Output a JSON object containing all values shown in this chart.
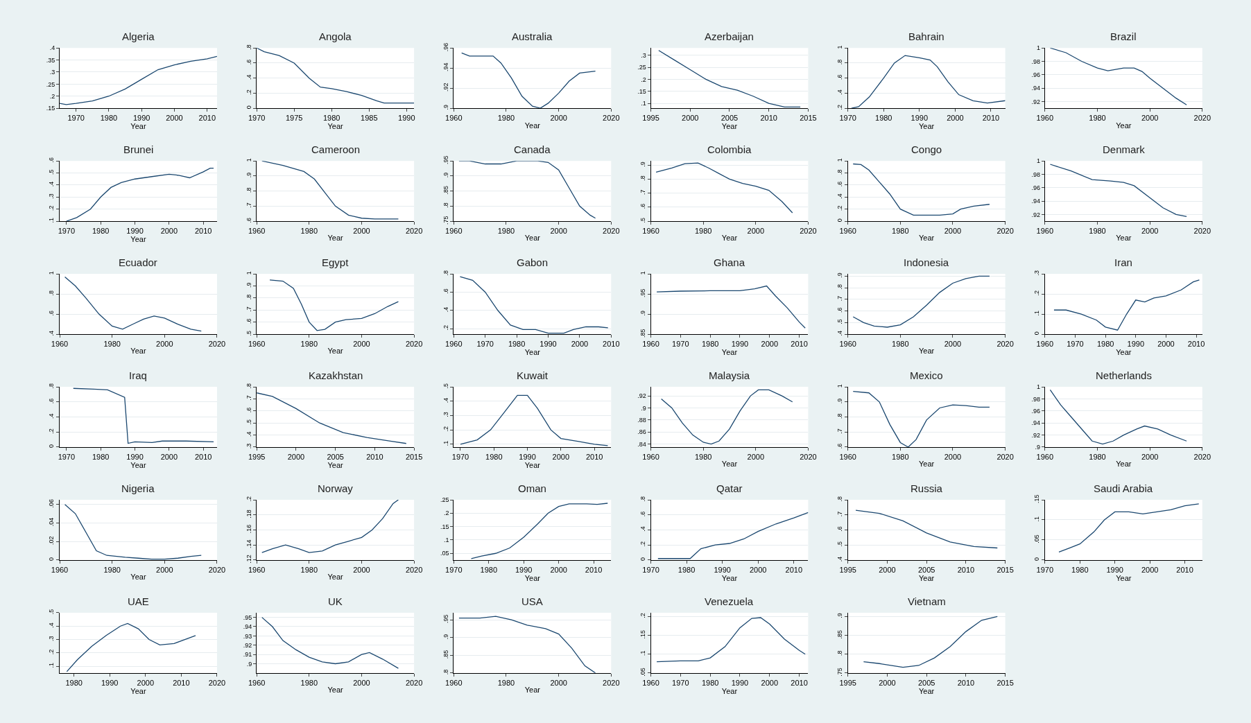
{
  "chart_data": [
    {
      "type": "line",
      "title": "Algeria",
      "xlabel": "Year",
      "color": "#1a476f",
      "grid": "y",
      "x": [
        1965,
        1967,
        1970,
        1975,
        1980,
        1985,
        1990,
        1995,
        2000,
        2005,
        2010,
        2013
      ],
      "values": [
        0.17,
        0.165,
        0.17,
        0.18,
        0.2,
        0.23,
        0.27,
        0.31,
        0.33,
        0.345,
        0.355,
        0.365
      ],
      "xlim": [
        1965,
        2013
      ],
      "xticks": [
        1970,
        1980,
        1990,
        2000,
        2010
      ],
      "ylim": [
        0.15,
        0.4
      ],
      "yticks": [
        {
          "value": 0.15,
          "label": ".15"
        },
        {
          "value": 0.2,
          "label": ".2"
        },
        {
          "value": 0.25,
          "label": ".25"
        },
        {
          "value": 0.3,
          "label": ".3"
        },
        {
          "value": 0.35,
          "label": ".35"
        },
        {
          "value": 0.4,
          "label": ".4"
        }
      ]
    },
    {
      "type": "line",
      "title": "Angola",
      "xlabel": "Year",
      "color": "#1a476f",
      "grid": "y",
      "x": [
        1970,
        1971,
        1973,
        1975,
        1977,
        1978.5,
        1980,
        1982,
        1984,
        1986,
        1987,
        1991
      ],
      "values": [
        0.8,
        0.75,
        0.7,
        0.6,
        0.4,
        0.28,
        0.26,
        0.22,
        0.17,
        0.1,
        0.07,
        0.07
      ],
      "xlim": [
        1970,
        1991
      ],
      "xticks": [
        1970,
        1975,
        1980,
        1985,
        1990
      ],
      "ylim": [
        0,
        0.8
      ],
      "yticks": [
        0,
        {
          "value": 0.2,
          "label": ".2"
        },
        {
          "value": 0.4,
          "label": ".4"
        },
        {
          "value": 0.6,
          "label": ".6"
        },
        {
          "value": 0.8,
          "label": ".8"
        }
      ]
    },
    {
      "type": "line",
      "title": "Australia",
      "xlabel": "Year",
      "color": "#1a476f",
      "grid": "y",
      "x": [
        1963,
        1966,
        1975,
        1978,
        1982,
        1986,
        1990,
        1993,
        1996,
        2000,
        2004,
        2008,
        2014
      ],
      "values": [
        0.955,
        0.952,
        0.952,
        0.945,
        0.93,
        0.912,
        0.902,
        0.9,
        0.905,
        0.915,
        0.927,
        0.935,
        0.937
      ],
      "xlim": [
        1960,
        2020
      ],
      "xticks": [
        1960,
        1980,
        2000,
        2020
      ],
      "ylim": [
        0.9,
        0.96
      ],
      "yticks": [
        {
          "value": 0.9,
          "label": ".9"
        },
        {
          "value": 0.92,
          "label": ".92"
        },
        {
          "value": 0.94,
          "label": ".94"
        },
        {
          "value": 0.96,
          "label": ".96"
        }
      ]
    },
    {
      "type": "line",
      "title": "Azerbaijan",
      "xlabel": "Year",
      "color": "#1a476f",
      "grid": "y",
      "x": [
        1996,
        1998,
        2000,
        2002,
        2004,
        2006,
        2008,
        2010,
        2012,
        2014
      ],
      "values": [
        0.32,
        0.28,
        0.24,
        0.2,
        0.17,
        0.155,
        0.13,
        0.1,
        0.085,
        0.085
      ],
      "xlim": [
        1995,
        2015
      ],
      "xticks": [
        1995,
        2000,
        2005,
        2010,
        2015
      ],
      "ylim": [
        0.08,
        0.33
      ],
      "yticks": [
        {
          "value": 0.1,
          "label": ".1"
        },
        {
          "value": 0.15,
          "label": ".15"
        },
        {
          "value": 0.2,
          "label": ".2"
        },
        {
          "value": 0.25,
          "label": ".25"
        },
        {
          "value": 0.3,
          "label": ".3"
        }
      ]
    },
    {
      "type": "line",
      "title": "Bahrain",
      "xlabel": "Year",
      "color": "#1a476f",
      "grid": "y",
      "x": [
        1971,
        1973,
        1976,
        1980,
        1983,
        1986,
        1990,
        1993,
        1995,
        1998,
        2001,
        2005,
        2009,
        2014
      ],
      "values": [
        0.2,
        0.22,
        0.35,
        0.6,
        0.8,
        0.9,
        0.87,
        0.84,
        0.75,
        0.55,
        0.38,
        0.3,
        0.27,
        0.3
      ],
      "xlim": [
        1970,
        2014
      ],
      "xticks": [
        1970,
        1980,
        1990,
        2000,
        2010
      ],
      "ylim": [
        0.2,
        1
      ],
      "yticks": [
        {
          "value": 0.2,
          "label": ".2"
        },
        {
          "value": 0.4,
          "label": ".4"
        },
        {
          "value": 0.6,
          "label": ".6"
        },
        {
          "value": 0.8,
          "label": ".8"
        },
        1
      ]
    },
    {
      "type": "line",
      "title": "Brazil",
      "xlabel": "Year",
      "color": "#1a476f",
      "grid": "y",
      "x": [
        1962,
        1968,
        1974,
        1980,
        1984,
        1990,
        1994,
        1997,
        2000,
        2005,
        2010,
        2014
      ],
      "values": [
        1.0,
        0.993,
        0.98,
        0.97,
        0.966,
        0.97,
        0.97,
        0.965,
        0.955,
        0.94,
        0.925,
        0.915
      ],
      "xlim": [
        1960,
        2020
      ],
      "xticks": [
        1960,
        1980,
        2000,
        2020
      ],
      "ylim": [
        0.91,
        1
      ],
      "yticks": [
        {
          "value": 0.92,
          "label": ".92"
        },
        {
          "value": 0.94,
          "label": ".94"
        },
        {
          "value": 0.96,
          "label": ".96"
        },
        {
          "value": 0.98,
          "label": ".98"
        },
        1
      ]
    },
    {
      "type": "line",
      "title": "Brunei",
      "xlabel": "Year",
      "color": "#1a476f",
      "grid": "y",
      "x": [
        1970,
        1973,
        1977,
        1980,
        1983,
        1986,
        1990,
        1995,
        2000,
        2003,
        2006,
        2010,
        2012,
        2013
      ],
      "values": [
        0.1,
        0.13,
        0.2,
        0.3,
        0.38,
        0.42,
        0.45,
        0.47,
        0.49,
        0.48,
        0.46,
        0.51,
        0.54,
        0.54
      ],
      "xlim": [
        1968,
        2014
      ],
      "xticks": [
        1970,
        1980,
        1990,
        2000,
        2010
      ],
      "ylim": [
        0.1,
        0.6
      ],
      "yticks": [
        {
          "value": 0.1,
          "label": ".1"
        },
        {
          "value": 0.2,
          "label": ".2"
        },
        {
          "value": 0.3,
          "label": ".3"
        },
        {
          "value": 0.4,
          "label": ".4"
        },
        {
          "value": 0.5,
          "label": ".5"
        },
        {
          "value": 0.6,
          "label": ".6"
        }
      ]
    },
    {
      "type": "line",
      "title": "Cameroon",
      "xlabel": "Year",
      "color": "#1a476f",
      "grid": "y",
      "x": [
        1962,
        1970,
        1978,
        1982,
        1986,
        1990,
        1995,
        2000,
        2005,
        2014
      ],
      "values": [
        1.0,
        0.97,
        0.93,
        0.88,
        0.79,
        0.7,
        0.64,
        0.62,
        0.615,
        0.615
      ],
      "xlim": [
        1960,
        2020
      ],
      "xticks": [
        1960,
        1980,
        2000,
        2020
      ],
      "ylim": [
        0.6,
        1
      ],
      "yticks": [
        {
          "value": 0.6,
          "label": ".6"
        },
        {
          "value": 0.7,
          "label": ".7"
        },
        {
          "value": 0.8,
          "label": ".8"
        },
        {
          "value": 0.9,
          "label": ".9"
        },
        1
      ]
    },
    {
      "type": "line",
      "title": "Canada",
      "xlabel": "Year",
      "color": "#1a476f",
      "grid": "y",
      "x": [
        1962,
        1966,
        1972,
        1978,
        1984,
        1992,
        1996,
        2000,
        2004,
        2008,
        2012,
        2014
      ],
      "values": [
        0.95,
        0.95,
        0.94,
        0.94,
        0.95,
        0.95,
        0.945,
        0.92,
        0.86,
        0.8,
        0.77,
        0.76
      ],
      "xlim": [
        1960,
        2020
      ],
      "xticks": [
        1960,
        1980,
        2000,
        2020
      ],
      "ylim": [
        0.75,
        0.95
      ],
      "yticks": [
        {
          "value": 0.75,
          "label": ".75"
        },
        {
          "value": 0.8,
          "label": ".8"
        },
        {
          "value": 0.85,
          "label": ".85"
        },
        {
          "value": 0.9,
          "label": ".9"
        },
        {
          "value": 0.95,
          "label": ".95"
        }
      ]
    },
    {
      "type": "line",
      "title": "Colombia",
      "xlabel": "Year",
      "color": "#1a476f",
      "grid": "y",
      "x": [
        1962,
        1968,
        1973,
        1978,
        1982,
        1986,
        1990,
        1995,
        2000,
        2005,
        2010,
        2014
      ],
      "values": [
        0.85,
        0.88,
        0.91,
        0.915,
        0.88,
        0.84,
        0.8,
        0.77,
        0.75,
        0.72,
        0.64,
        0.56
      ],
      "xlim": [
        1960,
        2020
      ],
      "xticks": [
        1960,
        1980,
        2000,
        2020
      ],
      "ylim": [
        0.5,
        0.93
      ],
      "yticks": [
        {
          "value": 0.5,
          "label": ".5"
        },
        {
          "value": 0.6,
          "label": ".6"
        },
        {
          "value": 0.7,
          "label": ".7"
        },
        {
          "value": 0.8,
          "label": ".8"
        },
        {
          "value": 0.9,
          "label": ".9"
        }
      ]
    },
    {
      "type": "line",
      "title": "Congo",
      "xlabel": "Year",
      "color": "#1a476f",
      "grid": "y",
      "x": [
        1962,
        1965,
        1968,
        1972,
        1976,
        1980,
        1985,
        1990,
        1995,
        2000,
        2003,
        2008,
        2014
      ],
      "values": [
        0.95,
        0.94,
        0.85,
        0.65,
        0.45,
        0.2,
        0.1,
        0.1,
        0.1,
        0.12,
        0.2,
        0.25,
        0.28
      ],
      "xlim": [
        1960,
        2020
      ],
      "xticks": [
        1960,
        1980,
        2000,
        2020
      ],
      "ylim": [
        0,
        1
      ],
      "yticks": [
        0,
        {
          "value": 0.2,
          "label": ".2"
        },
        {
          "value": 0.4,
          "label": ".4"
        },
        {
          "value": 0.6,
          "label": ".6"
        },
        {
          "value": 0.8,
          "label": ".8"
        },
        1
      ]
    },
    {
      "type": "line",
      "title": "Denmark",
      "xlabel": "Year",
      "color": "#1a476f",
      "grid": "y",
      "x": [
        1962,
        1970,
        1978,
        1985,
        1990,
        1994,
        2000,
        2005,
        2010,
        2014
      ],
      "values": [
        0.995,
        0.985,
        0.972,
        0.97,
        0.968,
        0.963,
        0.945,
        0.93,
        0.92,
        0.917
      ],
      "xlim": [
        1960,
        2020
      ],
      "xticks": [
        1960,
        1980,
        2000,
        2020
      ],
      "ylim": [
        0.91,
        1
      ],
      "yticks": [
        {
          "value": 0.92,
          "label": ".92"
        },
        {
          "value": 0.94,
          "label": ".94"
        },
        {
          "value": 0.96,
          "label": ".96"
        },
        {
          "value": 0.98,
          "label": ".98"
        },
        1
      ]
    },
    {
      "type": "line",
      "title": "Ecuador",
      "xlabel": "Year",
      "color": "#1a476f",
      "grid": "y",
      "x": [
        1962,
        1966,
        1970,
        1975,
        1980,
        1984,
        1988,
        1992,
        1996,
        2000,
        2005,
        2010,
        2014
      ],
      "values": [
        0.97,
        0.88,
        0.76,
        0.6,
        0.48,
        0.45,
        0.5,
        0.55,
        0.58,
        0.56,
        0.5,
        0.45,
        0.43
      ],
      "xlim": [
        1960,
        2020
      ],
      "xticks": [
        1960,
        1980,
        2000,
        2020
      ],
      "ylim": [
        0.4,
        1
      ],
      "yticks": [
        {
          "value": 0.4,
          "label": ".4"
        },
        {
          "value": 0.6,
          "label": ".6"
        },
        {
          "value": 0.8,
          "label": ".8"
        },
        1
      ]
    },
    {
      "type": "line",
      "title": "Egypt",
      "xlabel": "Year",
      "color": "#1a476f",
      "grid": "y",
      "x": [
        1965,
        1970,
        1974,
        1977,
        1980,
        1983,
        1986,
        1990,
        1994,
        2000,
        2005,
        2010,
        2014
      ],
      "values": [
        0.95,
        0.94,
        0.88,
        0.75,
        0.6,
        0.53,
        0.54,
        0.6,
        0.62,
        0.63,
        0.67,
        0.73,
        0.77
      ],
      "xlim": [
        1960,
        2020
      ],
      "xticks": [
        1960,
        1980,
        2000,
        2020
      ],
      "ylim": [
        0.5,
        1
      ],
      "yticks": [
        {
          "value": 0.5,
          "label": ".5"
        },
        {
          "value": 0.6,
          "label": ".6"
        },
        {
          "value": 0.7,
          "label": ".7"
        },
        {
          "value": 0.8,
          "label": ".8"
        },
        {
          "value": 0.9,
          "label": ".9"
        },
        1
      ]
    },
    {
      "type": "line",
      "title": "Gabon",
      "xlabel": "Year",
      "color": "#1a476f",
      "grid": "y",
      "x": [
        1962,
        1966,
        1970,
        1974,
        1978,
        1982,
        1986,
        1990,
        1995,
        1998,
        2002,
        2006,
        2009
      ],
      "values": [
        0.77,
        0.73,
        0.6,
        0.4,
        0.24,
        0.19,
        0.19,
        0.15,
        0.15,
        0.19,
        0.22,
        0.22,
        0.21
      ],
      "xlim": [
        1960,
        2010
      ],
      "xticks": [
        1960,
        1970,
        1980,
        1990,
        2000,
        2010
      ],
      "ylim": [
        0.14,
        0.8
      ],
      "yticks": [
        {
          "value": 0.2,
          "label": ".2"
        },
        {
          "value": 0.4,
          "label": ".4"
        },
        {
          "value": 0.6,
          "label": ".6"
        },
        {
          "value": 0.8,
          "label": ".8"
        }
      ]
    },
    {
      "type": "line",
      "title": "Ghana",
      "xlabel": "Year",
      "color": "#1a476f",
      "grid": "y",
      "x": [
        1962,
        1970,
        1980,
        1990,
        1995,
        1999,
        2002,
        2006,
        2010,
        2012
      ],
      "values": [
        0.955,
        0.957,
        0.958,
        0.958,
        0.963,
        0.97,
        0.945,
        0.915,
        0.88,
        0.865
      ],
      "xlim": [
        1960,
        2013
      ],
      "xticks": [
        1960,
        1970,
        1980,
        1990,
        2000,
        2010
      ],
      "ylim": [
        0.85,
        1
      ],
      "yticks": [
        {
          "value": 0.85,
          "label": ".85"
        },
        {
          "value": 0.9,
          "label": ".9"
        },
        {
          "value": 0.95,
          "label": ".95"
        },
        1
      ]
    },
    {
      "type": "line",
      "title": "Indonesia",
      "xlabel": "Year",
      "color": "#1a476f",
      "grid": "y",
      "x": [
        1962,
        1966,
        1970,
        1975,
        1980,
        1985,
        1990,
        1995,
        2000,
        2005,
        2010,
        2014
      ],
      "values": [
        0.55,
        0.5,
        0.47,
        0.46,
        0.48,
        0.55,
        0.65,
        0.76,
        0.84,
        0.88,
        0.9,
        0.9
      ],
      "xlim": [
        1960,
        2020
      ],
      "xticks": [
        1960,
        1980,
        2000,
        2020
      ],
      "ylim": [
        0.4,
        0.92
      ],
      "yticks": [
        {
          "value": 0.4,
          "label": ".4"
        },
        {
          "value": 0.5,
          "label": ".5"
        },
        {
          "value": 0.6,
          "label": ".6"
        },
        {
          "value": 0.7,
          "label": ".7"
        },
        {
          "value": 0.8,
          "label": ".8"
        },
        {
          "value": 0.9,
          "label": ".9"
        }
      ]
    },
    {
      "type": "line",
      "title": "Iran",
      "xlabel": "Year",
      "color": "#1a476f",
      "grid": "y",
      "x": [
        1963,
        1967,
        1972,
        1977,
        1980,
        1984,
        1987,
        1990,
        1993,
        1996,
        2000,
        2005,
        2009,
        2011
      ],
      "values": [
        0.12,
        0.12,
        0.1,
        0.07,
        0.035,
        0.02,
        0.1,
        0.17,
        0.16,
        0.18,
        0.19,
        0.22,
        0.26,
        0.27
      ],
      "xlim": [
        1960,
        2012
      ],
      "xticks": [
        1960,
        1970,
        1980,
        1990,
        2000,
        2010
      ],
      "ylim": [
        0,
        0.3
      ],
      "yticks": [
        0,
        {
          "value": 0.1,
          "label": ".1"
        },
        {
          "value": 0.2,
          "label": ".2"
        },
        {
          "value": 0.3,
          "label": ".3"
        }
      ]
    },
    {
      "type": "line",
      "title": "Iraq",
      "xlabel": "Year",
      "color": "#1a476f",
      "grid": "y",
      "x": [
        1972,
        1978,
        1982,
        1987,
        1988,
        1990,
        1995,
        1998,
        2005,
        2013
      ],
      "values": [
        0.78,
        0.77,
        0.76,
        0.66,
        0.05,
        0.07,
        0.06,
        0.08,
        0.08,
        0.07
      ],
      "xlim": [
        1968,
        2014
      ],
      "xticks": [
        1970,
        1980,
        1990,
        2000,
        2010
      ],
      "ylim": [
        0,
        0.8
      ],
      "yticks": [
        0,
        {
          "value": 0.2,
          "label": ".2"
        },
        {
          "value": 0.4,
          "label": ".4"
        },
        {
          "value": 0.6,
          "label": ".6"
        },
        {
          "value": 0.8,
          "label": ".8"
        }
      ]
    },
    {
      "type": "line",
      "title": "Kazakhstan",
      "xlabel": "Year",
      "color": "#1a476f",
      "grid": "y",
      "x": [
        1995,
        1997,
        2000,
        2003,
        2006,
        2009,
        2012,
        2014
      ],
      "values": [
        0.75,
        0.72,
        0.62,
        0.5,
        0.42,
        0.38,
        0.35,
        0.33
      ],
      "xlim": [
        1995,
        2015
      ],
      "xticks": [
        1995,
        2000,
        2005,
        2010,
        2015
      ],
      "ylim": [
        0.3,
        0.8
      ],
      "yticks": [
        {
          "value": 0.3,
          "label": ".3"
        },
        {
          "value": 0.4,
          "label": ".4"
        },
        {
          "value": 0.5,
          "label": ".5"
        },
        {
          "value": 0.6,
          "label": ".6"
        },
        {
          "value": 0.7,
          "label": ".7"
        },
        {
          "value": 0.8,
          "label": ".8"
        }
      ]
    },
    {
      "type": "line",
      "title": "Kuwait",
      "xlabel": "Year",
      "color": "#1a476f",
      "grid": "y",
      "x": [
        1970,
        1975,
        1979,
        1983,
        1987,
        1990,
        1993,
        1997,
        2000,
        2005,
        2010,
        2014
      ],
      "values": [
        0.1,
        0.13,
        0.2,
        0.32,
        0.44,
        0.44,
        0.35,
        0.2,
        0.14,
        0.12,
        0.1,
        0.09
      ],
      "xlim": [
        1968,
        2015
      ],
      "xticks": [
        1970,
        1980,
        1990,
        2000,
        2010
      ],
      "ylim": [
        0.08,
        0.5
      ],
      "yticks": [
        {
          "value": 0.1,
          "label": ".1"
        },
        {
          "value": 0.2,
          "label": ".2"
        },
        {
          "value": 0.3,
          "label": ".3"
        },
        {
          "value": 0.4,
          "label": ".4"
        },
        {
          "value": 0.5,
          "label": ".5"
        }
      ]
    },
    {
      "type": "line",
      "title": "Malaysia",
      "xlabel": "Year",
      "color": "#1a476f",
      "grid": "y",
      "x": [
        1964,
        1968,
        1972,
        1976,
        1980,
        1983,
        1986,
        1990,
        1994,
        1998,
        2001,
        2005,
        2010,
        2014
      ],
      "values": [
        0.915,
        0.9,
        0.875,
        0.855,
        0.843,
        0.84,
        0.845,
        0.865,
        0.895,
        0.92,
        0.93,
        0.93,
        0.92,
        0.91
      ],
      "xlim": [
        1960,
        2020
      ],
      "xticks": [
        1960,
        1980,
        2000,
        2020
      ],
      "ylim": [
        0.835,
        0.935
      ],
      "yticks": [
        {
          "value": 0.84,
          "label": ".84"
        },
        {
          "value": 0.86,
          "label": ".86"
        },
        {
          "value": 0.88,
          "label": ".88"
        },
        {
          "value": 0.9,
          "label": ".9"
        },
        {
          "value": 0.92,
          "label": ".92"
        }
      ]
    },
    {
      "type": "line",
      "title": "Mexico",
      "xlabel": "Year",
      "color": "#1a476f",
      "grid": "y",
      "x": [
        1962,
        1968,
        1972,
        1976,
        1980,
        1983,
        1986,
        1990,
        1995,
        2000,
        2005,
        2010,
        2014
      ],
      "values": [
        0.97,
        0.96,
        0.9,
        0.75,
        0.63,
        0.6,
        0.65,
        0.78,
        0.86,
        0.88,
        0.875,
        0.865,
        0.865
      ],
      "xlim": [
        1960,
        2020
      ],
      "xticks": [
        1960,
        1980,
        2000,
        2020
      ],
      "ylim": [
        0.6,
        1
      ],
      "yticks": [
        {
          "value": 0.6,
          "label": ".6"
        },
        {
          "value": 0.7,
          "label": ".7"
        },
        {
          "value": 0.8,
          "label": ".8"
        },
        {
          "value": 0.9,
          "label": ".9"
        },
        1
      ]
    },
    {
      "type": "line",
      "title": "Netherlands",
      "xlabel": "Year",
      "color": "#1a476f",
      "grid": "y",
      "x": [
        1962,
        1966,
        1970,
        1975,
        1978,
        1982,
        1986,
        1990,
        1995,
        1998,
        2003,
        2008,
        2014
      ],
      "values": [
        0.995,
        0.97,
        0.95,
        0.925,
        0.91,
        0.905,
        0.91,
        0.92,
        0.93,
        0.935,
        0.93,
        0.92,
        0.91
      ],
      "xlim": [
        1960,
        2020
      ],
      "xticks": [
        1960,
        1980,
        2000,
        2020
      ],
      "ylim": [
        0.9,
        1
      ],
      "yticks": [
        {
          "value": 0.9,
          "label": ".9"
        },
        {
          "value": 0.92,
          "label": ".92"
        },
        {
          "value": 0.94,
          "label": ".94"
        },
        {
          "value": 0.96,
          "label": ".96"
        },
        {
          "value": 0.98,
          "label": ".98"
        },
        1
      ]
    },
    {
      "type": "line",
      "title": "Nigeria",
      "xlabel": "Year",
      "color": "#1a476f",
      "grid": "y",
      "x": [
        1962,
        1966,
        1970,
        1974,
        1978,
        1985,
        1990,
        1995,
        2000,
        2005,
        2010,
        2014
      ],
      "values": [
        0.06,
        0.05,
        0.03,
        0.01,
        0.005,
        0.003,
        0.002,
        0.001,
        0.001,
        0.002,
        0.004,
        0.005
      ],
      "xlim": [
        1960,
        2020
      ],
      "xticks": [
        1960,
        1980,
        2000,
        2020
      ],
      "ylim": [
        0,
        0.065
      ],
      "yticks": [
        0,
        {
          "value": 0.02,
          "label": ".02"
        },
        {
          "value": 0.04,
          "label": ".04"
        },
        {
          "value": 0.06,
          "label": ".06"
        }
      ]
    },
    {
      "type": "line",
      "title": "Norway",
      "xlabel": "Year",
      "color": "#1a476f",
      "grid": "y",
      "x": [
        1962,
        1966,
        1971,
        1976,
        1980,
        1985,
        1990,
        1995,
        2000,
        2004,
        2008,
        2012,
        2014
      ],
      "values": [
        0.13,
        0.135,
        0.14,
        0.135,
        0.13,
        0.132,
        0.14,
        0.145,
        0.15,
        0.16,
        0.175,
        0.195,
        0.2
      ],
      "xlim": [
        1960,
        2020
      ],
      "xticks": [
        1960,
        1980,
        2000,
        2020
      ],
      "ylim": [
        0.12,
        0.2
      ],
      "yticks": [
        {
          "value": 0.12,
          "label": ".12"
        },
        {
          "value": 0.14,
          "label": ".14"
        },
        {
          "value": 0.16,
          "label": ".16"
        },
        {
          "value": 0.18,
          "label": ".18"
        },
        {
          "value": 0.2,
          "label": ".2"
        }
      ]
    },
    {
      "type": "line",
      "title": "Oman",
      "xlabel": "Year",
      "color": "#1a476f",
      "grid": "y",
      "x": [
        1975,
        1978,
        1982,
        1986,
        1990,
        1994,
        1997,
        2000,
        2003,
        2008,
        2011,
        2014
      ],
      "values": [
        0.03,
        0.04,
        0.05,
        0.07,
        0.11,
        0.16,
        0.2,
        0.225,
        0.235,
        0.235,
        0.233,
        0.237
      ],
      "xlim": [
        1970,
        2015
      ],
      "xticks": [
        1970,
        1980,
        1990,
        2000,
        2010
      ],
      "ylim": [
        0.025,
        0.25
      ],
      "yticks": [
        {
          "value": 0.05,
          "label": ".05"
        },
        {
          "value": 0.1,
          "label": ".1"
        },
        {
          "value": 0.15,
          "label": ".15"
        },
        {
          "value": 0.2,
          "label": ".2"
        },
        {
          "value": 0.25,
          "label": ".25"
        }
      ]
    },
    {
      "type": "line",
      "title": "Qatar",
      "xlabel": "Year",
      "color": "#1a476f",
      "grid": "y",
      "x": [
        1972,
        1981,
        1984,
        1988,
        1992,
        1996,
        2000,
        2005,
        2010,
        2014
      ],
      "values": [
        0.02,
        0.02,
        0.15,
        0.2,
        0.22,
        0.28,
        0.38,
        0.48,
        0.56,
        0.63
      ],
      "xlim": [
        1970,
        2014
      ],
      "xticks": [
        1970,
        1980,
        1990,
        2000,
        2010
      ],
      "ylim": [
        0,
        0.8
      ],
      "yticks": [
        0,
        {
          "value": 0.2,
          "label": ".2"
        },
        {
          "value": 0.4,
          "label": ".4"
        },
        {
          "value": 0.6,
          "label": ".6"
        },
        {
          "value": 0.8,
          "label": ".8"
        }
      ]
    },
    {
      "type": "line",
      "title": "Russia",
      "xlabel": "Year",
      "color": "#1a476f",
      "grid": "y",
      "x": [
        1996,
        1999,
        2002,
        2005,
        2008,
        2011,
        2014
      ],
      "values": [
        0.73,
        0.71,
        0.66,
        0.58,
        0.52,
        0.49,
        0.48
      ],
      "xlim": [
        1995,
        2015
      ],
      "xticks": [
        1995,
        2000,
        2005,
        2010,
        2015
      ],
      "ylim": [
        0.4,
        0.8
      ],
      "yticks": [
        {
          "value": 0.4,
          "label": ".4"
        },
        {
          "value": 0.5,
          "label": ".5"
        },
        {
          "value": 0.6,
          "label": ".6"
        },
        {
          "value": 0.7,
          "label": ".7"
        },
        {
          "value": 0.8,
          "label": ".8"
        }
      ]
    },
    {
      "type": "line",
      "title": "Saudi Arabia",
      "xlabel": "Year",
      "color": "#1a476f",
      "grid": "y",
      "x": [
        1974,
        1977,
        1980,
        1984,
        1987,
        1990,
        1994,
        1998,
        2002,
        2006,
        2010,
        2014
      ],
      "values": [
        0.02,
        0.03,
        0.04,
        0.07,
        0.1,
        0.12,
        0.12,
        0.115,
        0.12,
        0.125,
        0.135,
        0.14
      ],
      "xlim": [
        1970,
        2015
      ],
      "xticks": [
        1970,
        1980,
        1990,
        2000,
        2010
      ],
      "ylim": [
        0,
        0.15
      ],
      "yticks": [
        0,
        {
          "value": 0.05,
          "label": ".05"
        },
        {
          "value": 0.1,
          "label": ".1"
        },
        {
          "value": 0.15,
          "label": ".15"
        }
      ]
    },
    {
      "type": "line",
      "title": "UAE",
      "xlabel": "Year",
      "color": "#1a476f",
      "grid": "y",
      "x": [
        1978,
        1981,
        1985,
        1989,
        1993,
        1995,
        1998,
        2001,
        2004,
        2008,
        2011,
        2014
      ],
      "values": [
        0.06,
        0.15,
        0.25,
        0.33,
        0.4,
        0.42,
        0.38,
        0.3,
        0.26,
        0.27,
        0.3,
        0.33
      ],
      "xlim": [
        1976,
        2020
      ],
      "xticks": [
        1980,
        1990,
        2000,
        2010,
        2020
      ],
      "ylim": [
        0.05,
        0.5
      ],
      "yticks": [
        {
          "value": 0.1,
          "label": ".1"
        },
        {
          "value": 0.2,
          "label": ".2"
        },
        {
          "value": 0.3,
          "label": ".3"
        },
        {
          "value": 0.4,
          "label": ".4"
        },
        {
          "value": 0.5,
          "label": ".5"
        }
      ]
    },
    {
      "type": "line",
      "title": "UK",
      "xlabel": "Year",
      "color": "#1a476f",
      "grid": "y",
      "x": [
        1962,
        1966,
        1970,
        1975,
        1980,
        1985,
        1990,
        1995,
        2000,
        2003,
        2008,
        2014
      ],
      "values": [
        0.95,
        0.94,
        0.925,
        0.915,
        0.907,
        0.902,
        0.9,
        0.902,
        0.91,
        0.912,
        0.905,
        0.895
      ],
      "xlim": [
        1960,
        2020
      ],
      "xticks": [
        1960,
        1980,
        2000,
        2020
      ],
      "ylim": [
        0.89,
        0.955
      ],
      "yticks": [
        {
          "value": 0.9,
          "label": ".9"
        },
        {
          "value": 0.91,
          "label": ".91"
        },
        {
          "value": 0.92,
          "label": ".92"
        },
        {
          "value": 0.93,
          "label": ".93"
        },
        {
          "value": 0.94,
          "label": ".94"
        },
        {
          "value": 0.95,
          "label": ".95"
        }
      ]
    },
    {
      "type": "line",
      "title": "USA",
      "xlabel": "Year",
      "color": "#1a476f",
      "grid": "y",
      "x": [
        1962,
        1970,
        1976,
        1982,
        1988,
        1995,
        2000,
        2005,
        2010,
        2014
      ],
      "values": [
        0.955,
        0.955,
        0.96,
        0.95,
        0.935,
        0.925,
        0.91,
        0.87,
        0.82,
        0.8
      ],
      "xlim": [
        1960,
        2020
      ],
      "xticks": [
        1960,
        1980,
        2000,
        2020
      ],
      "ylim": [
        0.8,
        0.97
      ],
      "yticks": [
        {
          "value": 0.8,
          "label": ".8"
        },
        {
          "value": 0.85,
          "label": ".85"
        },
        {
          "value": 0.9,
          "label": ".9"
        },
        {
          "value": 0.95,
          "label": ".95"
        }
      ]
    },
    {
      "type": "line",
      "title": "Venezuela",
      "xlabel": "Year",
      "color": "#1a476f",
      "grid": "y",
      "x": [
        1962,
        1970,
        1976,
        1980,
        1985,
        1990,
        1994,
        1997,
        2000,
        2005,
        2010,
        2012
      ],
      "values": [
        0.08,
        0.082,
        0.082,
        0.09,
        0.12,
        0.17,
        0.195,
        0.197,
        0.18,
        0.14,
        0.11,
        0.1
      ],
      "xlim": [
        1960,
        2013
      ],
      "xticks": [
        1960,
        1970,
        1980,
        1990,
        2000,
        2010
      ],
      "ylim": [
        0.05,
        0.21
      ],
      "yticks": [
        {
          "value": 0.05,
          "label": ".05"
        },
        {
          "value": 0.1,
          "label": ".1"
        },
        {
          "value": 0.15,
          "label": ".15"
        },
        {
          "value": 0.2,
          "label": ".2"
        }
      ]
    },
    {
      "type": "line",
      "title": "Vietnam",
      "xlabel": "Year",
      "color": "#1a476f",
      "grid": "y",
      "x": [
        1997,
        1999,
        2002,
        2004,
        2006,
        2008,
        2010,
        2012,
        2014
      ],
      "values": [
        0.78,
        0.775,
        0.765,
        0.77,
        0.79,
        0.82,
        0.86,
        0.89,
        0.9
      ],
      "xlim": [
        1995,
        2015
      ],
      "xticks": [
        1995,
        2000,
        2005,
        2010,
        2015
      ],
      "ylim": [
        0.75,
        0.91
      ],
      "yticks": [
        {
          "value": 0.75,
          "label": ".75"
        },
        {
          "value": 0.8,
          "label": ".8"
        },
        {
          "value": 0.85,
          "label": ".85"
        },
        {
          "value": 0.9,
          "label": ".9"
        }
      ]
    }
  ]
}
